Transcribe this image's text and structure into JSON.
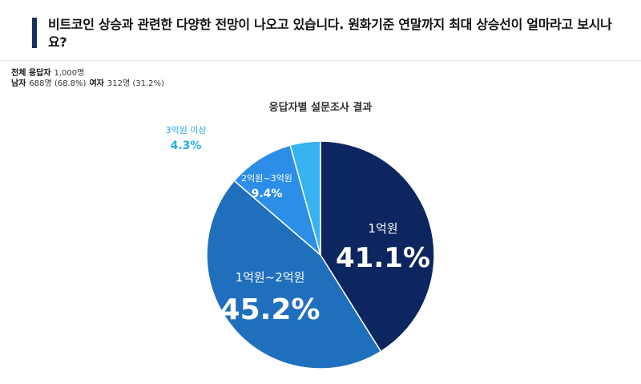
{
  "question": "비트코인 상승과 관련한 다양한 전망이 나오고 있습니다. 원화기준 연말까지 최대 상승선이 얼마라고 보시나요?",
  "respondents": {
    "total_label": "전체 응답자",
    "total_value": "1,000명",
    "male_label": "남자",
    "male_value": "688명 (68.8%)",
    "female_label": "여자",
    "female_value": "312명 (31.2%)"
  },
  "chart_data": {
    "type": "pie",
    "title": "응답자별 설문조사 결과",
    "start_angle_deg": 0,
    "direction": "clockwise",
    "slices": [
      {
        "label": "1억원",
        "value": 41.1,
        "value_label": "41.1%",
        "color": "#0d2660"
      },
      {
        "label": "1억원~2억원",
        "value": 45.2,
        "value_label": "45.2%",
        "color": "#1f6fbd"
      },
      {
        "label": "2억원~3억원",
        "value": 9.4,
        "value_label": "9.4%",
        "color": "#2c8ee6"
      },
      {
        "label": "3억원 이상",
        "value": 4.3,
        "value_label": "4.3%",
        "color": "#36b3f0"
      }
    ],
    "outside_label_color": "#27aee8"
  }
}
